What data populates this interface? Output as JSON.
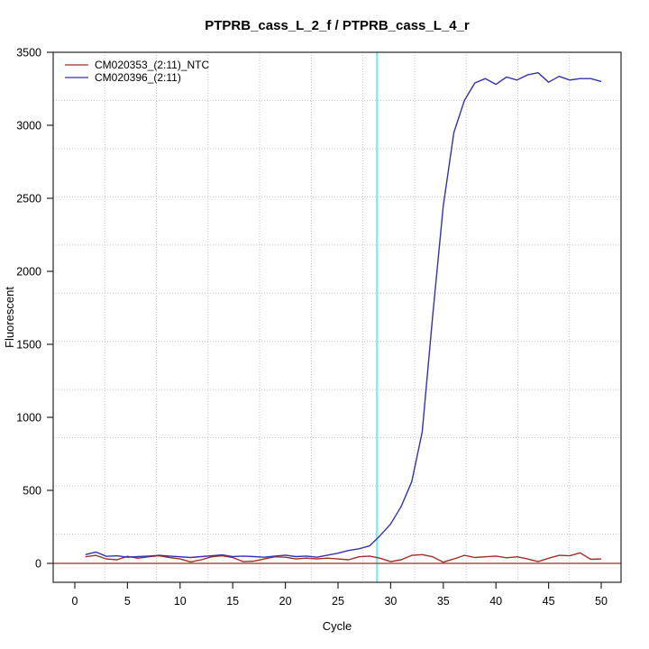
{
  "title": "PTPRB_cass_L_2_f / PTPRB_cass_L_4_r",
  "colors": {
    "background": "#ffffff",
    "axis": "#262626",
    "grid": "#c4c4c4",
    "text": "#000000",
    "red_series": "#9e2f28",
    "blue_series": "#3333ab",
    "threshold_line": "#82f0f0"
  },
  "legend": {
    "entries": [
      {
        "label": "CM020353_(2:11)_NTC",
        "color": "#9e2f28"
      },
      {
        "label": "CM020396_(2:11)",
        "color": "#3333ab"
      }
    ]
  },
  "chart_data": {
    "type": "line",
    "title": "PTPRB_cass_L_2_f / PTPRB_cass_L_4_r",
    "xlabel": "Cycle",
    "ylabel": "Fluorescent",
    "x_ticks": [
      0,
      5,
      10,
      15,
      20,
      25,
      30,
      35,
      40,
      45,
      50
    ],
    "y_ticks": [
      0,
      500,
      1000,
      1500,
      2000,
      2500,
      3000,
      3500
    ],
    "xlim": [
      -2,
      52
    ],
    "ylim": [
      -130,
      3500
    ],
    "grid": "dotted, 11x11 equal cells, light gray",
    "legend_position": "top-left, no box",
    "threshold_line": {
      "x": 28.7,
      "color": "#82f0f0",
      "orientation": "vertical"
    },
    "baseline": {
      "y": 0,
      "color": "#9e2f28",
      "orientation": "horizontal"
    },
    "x": [
      1,
      2,
      3,
      4,
      5,
      6,
      7,
      8,
      9,
      10,
      11,
      12,
      13,
      14,
      15,
      16,
      17,
      18,
      19,
      20,
      21,
      22,
      23,
      24,
      25,
      26,
      27,
      28,
      29,
      30,
      31,
      32,
      33,
      34,
      35,
      36,
      37,
      38,
      39,
      40,
      41,
      42,
      43,
      44,
      45,
      46,
      47,
      48,
      49,
      50
    ],
    "series": [
      {
        "name": "CM020353_(2:11)_NTC",
        "color": "#9e2f28",
        "values": [
          45,
          55,
          30,
          25,
          48,
          35,
          45,
          52,
          40,
          30,
          10,
          25,
          45,
          52,
          40,
          12,
          15,
          30,
          45,
          42,
          30,
          36,
          30,
          36,
          30,
          25,
          45,
          50,
          35,
          12,
          25,
          55,
          60,
          45,
          8,
          30,
          55,
          40,
          45,
          50,
          38,
          45,
          30,
          12,
          35,
          55,
          52,
          72,
          28,
          30
        ]
      },
      {
        "name": "CM020396_(2:11)",
        "color": "#3333ab",
        "values": [
          60,
          78,
          48,
          52,
          42,
          46,
          50,
          55,
          50,
          45,
          40,
          46,
          52,
          58,
          46,
          50,
          46,
          42,
          50,
          56,
          46,
          50,
          42,
          56,
          70,
          88,
          100,
          120,
          190,
          270,
          390,
          560,
          900,
          1700,
          2450,
          2950,
          3170,
          3290,
          3320,
          3280,
          3330,
          3310,
          3345,
          3360,
          3295,
          3335,
          3310,
          3320,
          3320,
          3300
        ]
      }
    ]
  }
}
